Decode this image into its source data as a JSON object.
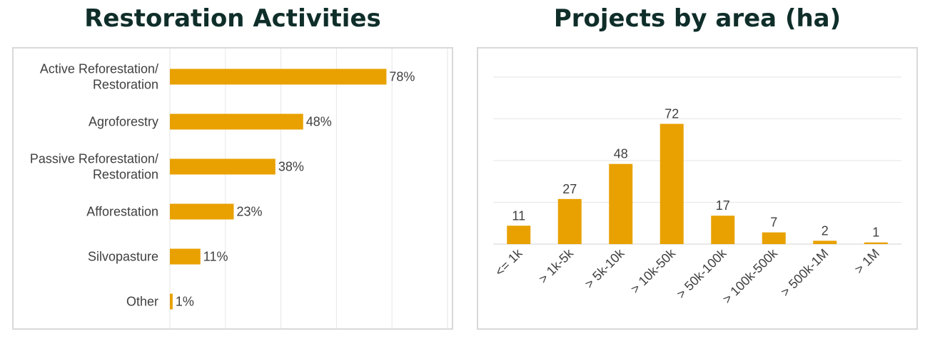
{
  "charts_meta": {
    "bar_color": "#e8a100",
    "title_color": "#0f2e2a",
    "grid_color": "#e6e6e6"
  },
  "chart_data": [
    {
      "type": "bar",
      "orientation": "horizontal",
      "title": "Restoration Activities",
      "categories": [
        [
          "Active Reforestation/",
          "Restoration"
        ],
        [
          "Agroforestry"
        ],
        [
          "Passive Reforestation/",
          "Restoration"
        ],
        [
          "Afforestation"
        ],
        [
          "Silvopasture"
        ],
        [
          "Other"
        ]
      ],
      "values": [
        78,
        48,
        38,
        23,
        11,
        1
      ],
      "data_labels": [
        "78%",
        "48%",
        "38%",
        "23%",
        "11%",
        "1%"
      ],
      "unit": "%",
      "xlim": [
        0,
        100
      ],
      "grid": true,
      "legend": "none"
    },
    {
      "type": "bar",
      "orientation": "vertical",
      "title": "Projects by area (ha)",
      "categories": [
        "<= 1k",
        "> 1k-5k",
        "> 5k-10k",
        "> 10k-50k",
        "> 50k-100k",
        "> 100k-500k",
        "> 500k-1M",
        "> 1M"
      ],
      "values": [
        11,
        27,
        48,
        72,
        17,
        7,
        2,
        1
      ],
      "data_labels": [
        "11",
        "27",
        "48",
        "72",
        "17",
        "7",
        "2",
        "1"
      ],
      "ylim": [
        0,
        100
      ],
      "grid": true,
      "legend": "none"
    }
  ]
}
